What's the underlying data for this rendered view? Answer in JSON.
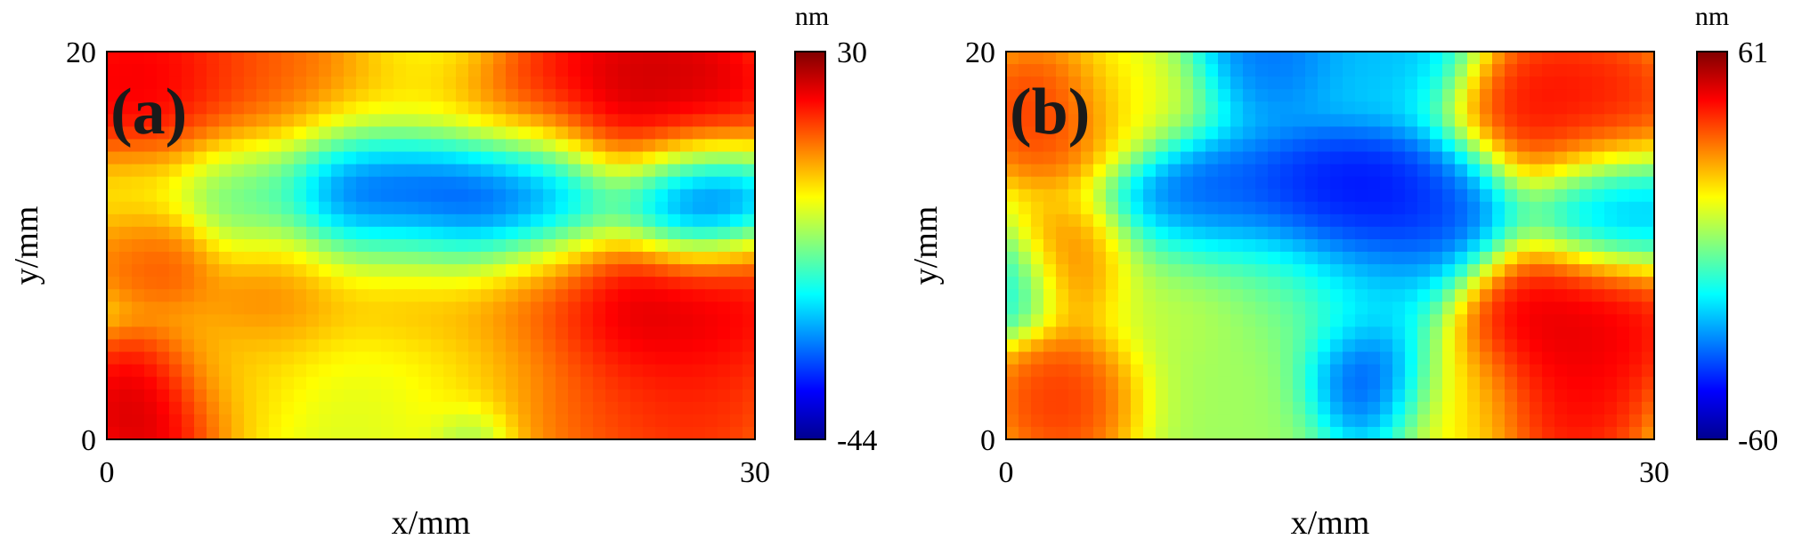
{
  "chart_data": [
    {
      "type": "heatmap",
      "panel_label": "(a)",
      "xlabel": "x/mm",
      "ylabel": "y/mm",
      "xlim": [
        0,
        30
      ],
      "ylim": [
        0,
        20
      ],
      "x_ticks": [
        "0",
        "30"
      ],
      "y_ticks": [
        "0",
        "20"
      ],
      "colorbar": {
        "unit": "nm",
        "max_label": "30",
        "min_label": "-44",
        "range": [
          -44,
          30
        ],
        "colormap": "jet"
      },
      "anchors": [
        [
          2,
          18,
          25,
          4.5
        ],
        [
          8,
          18.5,
          15,
          4
        ],
        [
          14,
          18,
          12,
          4
        ],
        [
          19,
          17.5,
          22,
          3.5
        ],
        [
          24,
          17,
          28,
          4
        ],
        [
          27,
          17.5,
          26,
          3.5
        ],
        [
          15,
          20,
          -5,
          3
        ],
        [
          12,
          12.5,
          -40,
          3.5
        ],
        [
          16,
          12.5,
          -42,
          3.5
        ],
        [
          20,
          12.5,
          -38,
          3.5
        ],
        [
          27,
          12.5,
          -44,
          3
        ],
        [
          1,
          12.5,
          0,
          2.5
        ],
        [
          6,
          12.5,
          -15,
          3
        ],
        [
          1,
          10,
          15,
          2
        ],
        [
          3,
          9.5,
          18,
          2
        ],
        [
          8,
          8,
          15,
          3.5
        ],
        [
          14,
          8.5,
          14,
          3.5
        ],
        [
          20,
          8,
          18,
          3.5
        ],
        [
          24,
          7,
          28,
          3.5
        ],
        [
          28,
          7,
          24,
          3.5
        ],
        [
          2,
          1.5,
          28,
          3
        ],
        [
          6,
          3,
          5,
          3
        ],
        [
          12,
          3,
          0,
          4
        ],
        [
          18,
          3,
          5,
          4
        ],
        [
          22,
          2,
          18,
          3.5
        ],
        [
          27,
          1.5,
          20,
          3.5
        ],
        [
          17,
          0,
          -10,
          1.5
        ]
      ]
    },
    {
      "type": "heatmap",
      "panel_label": "(b)",
      "xlabel": "x/mm",
      "ylabel": "y/mm",
      "xlim": [
        0,
        30
      ],
      "ylim": [
        0,
        20
      ],
      "x_ticks": [
        "0",
        "30"
      ],
      "y_ticks": [
        "0",
        "20"
      ],
      "colorbar": {
        "unit": "nm",
        "max_label": "61",
        "min_label": "-60",
        "range": [
          -60,
          61
        ],
        "colormap": "jet"
      },
      "anchors": [
        [
          2,
          17,
          45,
          3
        ],
        [
          6,
          18,
          15,
          3
        ],
        [
          12,
          20,
          -35,
          3
        ],
        [
          18,
          20,
          -25,
          3
        ],
        [
          25,
          17,
          50,
          3.5
        ],
        [
          28,
          17,
          45,
          3
        ],
        [
          9,
          12,
          -40,
          3
        ],
        [
          14,
          12,
          -45,
          3
        ],
        [
          17,
          12,
          -50,
          3
        ],
        [
          20,
          12,
          -40,
          3
        ],
        [
          28,
          12,
          -30,
          3
        ],
        [
          0,
          8,
          -20,
          2
        ],
        [
          3,
          9,
          35,
          2.5
        ],
        [
          8,
          8,
          10,
          3
        ],
        [
          13,
          8,
          0,
          3
        ],
        [
          17,
          8,
          -20,
          3
        ],
        [
          25,
          6,
          55,
          3.5
        ],
        [
          28,
          6,
          50,
          3
        ],
        [
          3,
          2,
          45,
          3
        ],
        [
          10,
          2,
          5,
          4
        ],
        [
          17,
          3,
          -45,
          2.5
        ],
        [
          21,
          2,
          20,
          3
        ],
        [
          26,
          1.5,
          50,
          3
        ]
      ]
    }
  ]
}
